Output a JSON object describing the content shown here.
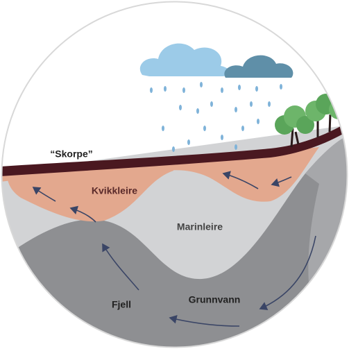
{
  "labels": {
    "crust": "“Skorpe”",
    "quick_clay": "Kvikkleire",
    "marine_clay": "Marinleire",
    "bedrock": "Fjell",
    "groundwater": "Grunnvann"
  }
}
